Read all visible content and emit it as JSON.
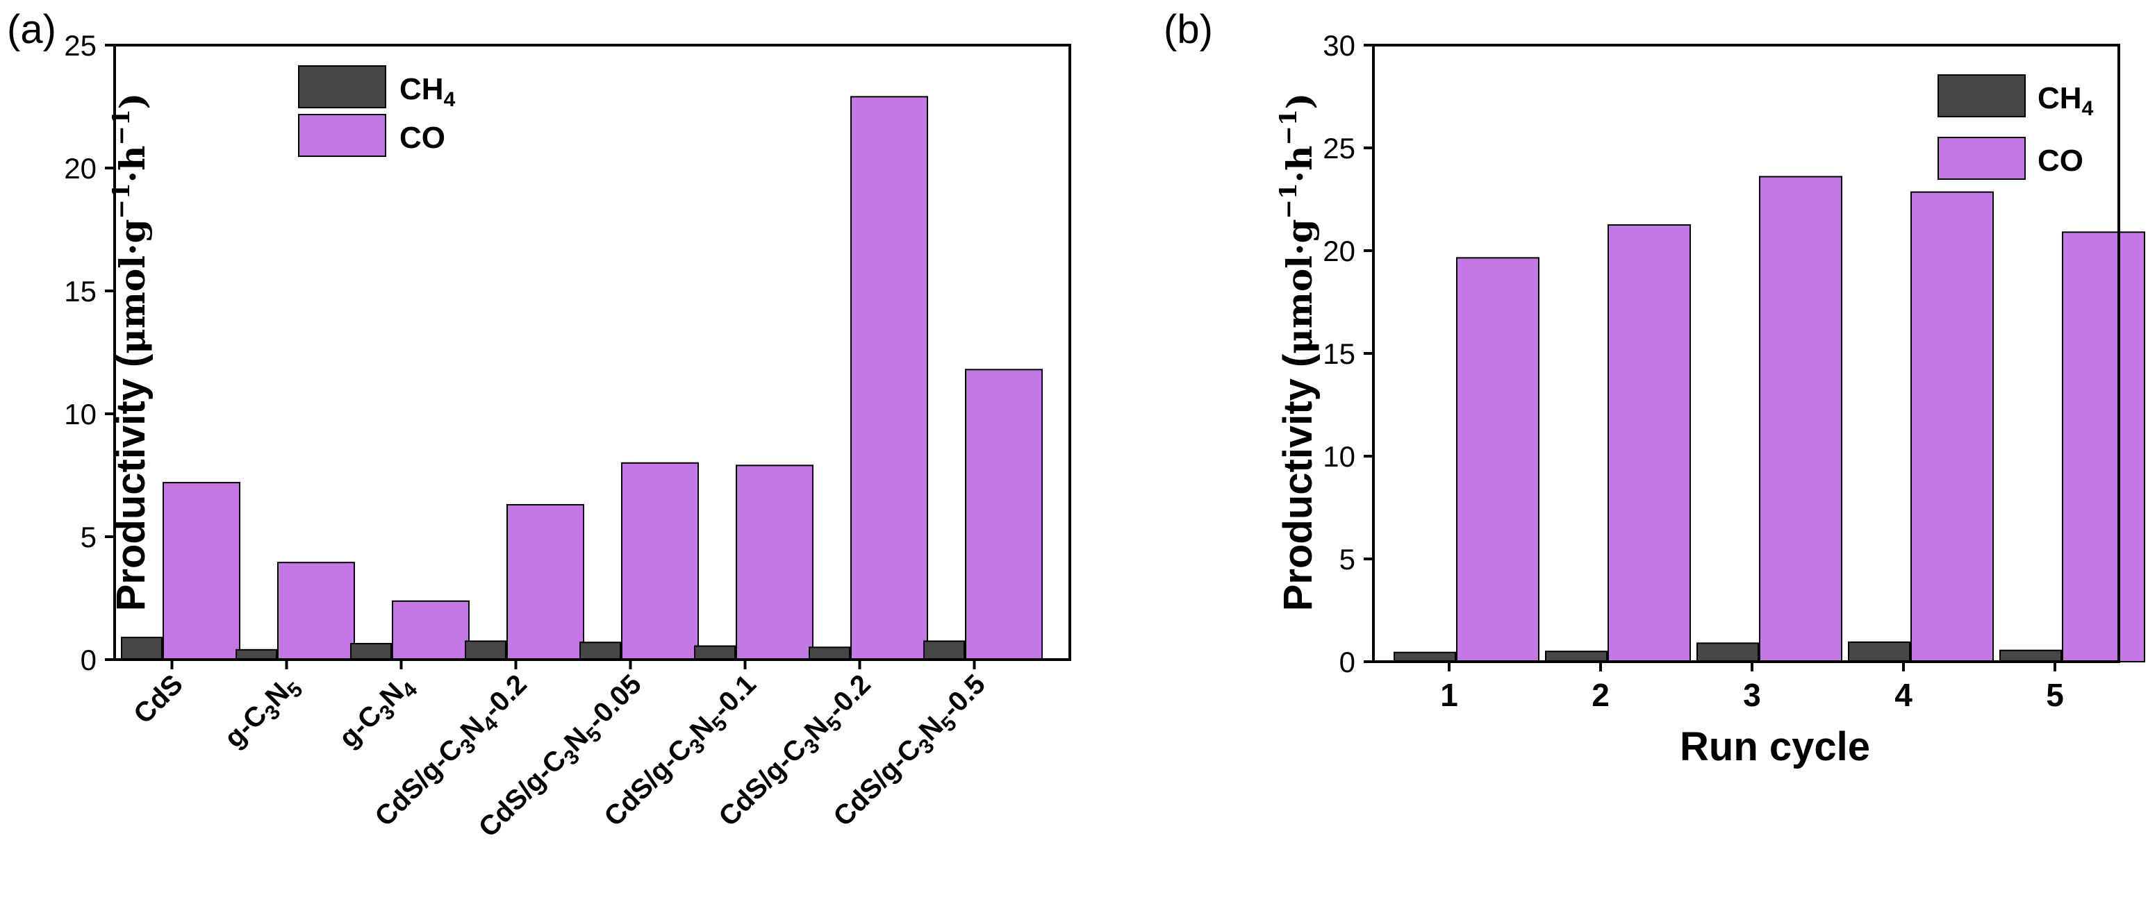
{
  "chart_data": [
    {
      "panel_label": "(a)",
      "type": "bar",
      "title": "",
      "xlabel": "",
      "ylabel_main": "Productivity (",
      "ylabel_unit_parts": [
        "μmol·g",
        "−1",
        "·h",
        "−1",
        ")"
      ],
      "ylim": [
        0,
        25
      ],
      "yticks": [
        "0",
        "5",
        "10",
        "15",
        "20",
        "25"
      ],
      "categories": [
        [
          {
            "t": "CdS"
          }
        ],
        [
          {
            "t": "g-C"
          },
          {
            "t": "3",
            "sub": true
          },
          {
            "t": "N"
          },
          {
            "t": "5",
            "sub": true
          }
        ],
        [
          {
            "t": "g-C"
          },
          {
            "t": "3",
            "sub": true
          },
          {
            "t": "N"
          },
          {
            "t": "4",
            "sub": true
          }
        ],
        [
          {
            "t": "CdS/g-C"
          },
          {
            "t": "3",
            "sub": true
          },
          {
            "t": "N"
          },
          {
            "t": "4",
            "sub": true
          },
          {
            "t": "-0.2"
          }
        ],
        [
          {
            "t": "CdS/g-C"
          },
          {
            "t": "3",
            "sub": true
          },
          {
            "t": "N"
          },
          {
            "t": "5",
            "sub": true
          },
          {
            "t": "-0.05"
          }
        ],
        [
          {
            "t": "CdS/g-C"
          },
          {
            "t": "3",
            "sub": true
          },
          {
            "t": "N"
          },
          {
            "t": "5",
            "sub": true
          },
          {
            "t": "-0.1"
          }
        ],
        [
          {
            "t": "CdS/g-C"
          },
          {
            "t": "3",
            "sub": true
          },
          {
            "t": "N"
          },
          {
            "t": "5",
            "sub": true
          },
          {
            "t": "-0.2"
          }
        ],
        [
          {
            "t": "CdS/g-C"
          },
          {
            "t": "3",
            "sub": true
          },
          {
            "t": "N"
          },
          {
            "t": "5",
            "sub": true
          },
          {
            "t": "-0.5"
          }
        ]
      ],
      "series": [
        {
          "name_parts": [
            {
              "t": "CH"
            },
            {
              "t": "4",
              "sub": true
            }
          ],
          "color": "#474747",
          "values": [
            0.9,
            0.4,
            0.65,
            0.75,
            0.7,
            0.55,
            0.5,
            0.75
          ]
        },
        {
          "name_parts": [
            {
              "t": "CO"
            }
          ],
          "color": "#c378e3",
          "values": [
            7.2,
            3.95,
            2.38,
            6.3,
            8.0,
            7.9,
            22.9,
            11.8
          ]
        }
      ],
      "legend_position": "top-left"
    },
    {
      "panel_label": "(b)",
      "type": "bar",
      "title": "",
      "xlabel": "Run cycle",
      "ylabel_main": "Productivity (",
      "ylabel_unit_parts": [
        "μmol·g",
        "−1",
        "·h",
        "−1",
        ")"
      ],
      "ylim": [
        0,
        30
      ],
      "yticks": [
        "0",
        "5",
        "10",
        "15",
        "20",
        "25",
        "30"
      ],
      "categories": [
        [
          {
            "t": "1"
          }
        ],
        [
          {
            "t": "2"
          }
        ],
        [
          {
            "t": "3"
          }
        ],
        [
          {
            "t": "4"
          }
        ],
        [
          {
            "t": "5"
          }
        ]
      ],
      "series": [
        {
          "name_parts": [
            {
              "t": "CH"
            },
            {
              "t": "4",
              "sub": true
            }
          ],
          "color": "#474747",
          "values": [
            0.45,
            0.5,
            0.9,
            0.95,
            0.55
          ]
        },
        {
          "name_parts": [
            {
              "t": "CO"
            }
          ],
          "color": "#c378e3",
          "values": [
            19.65,
            21.25,
            23.6,
            22.85,
            20.9
          ]
        }
      ],
      "legend_position": "top-right"
    }
  ]
}
